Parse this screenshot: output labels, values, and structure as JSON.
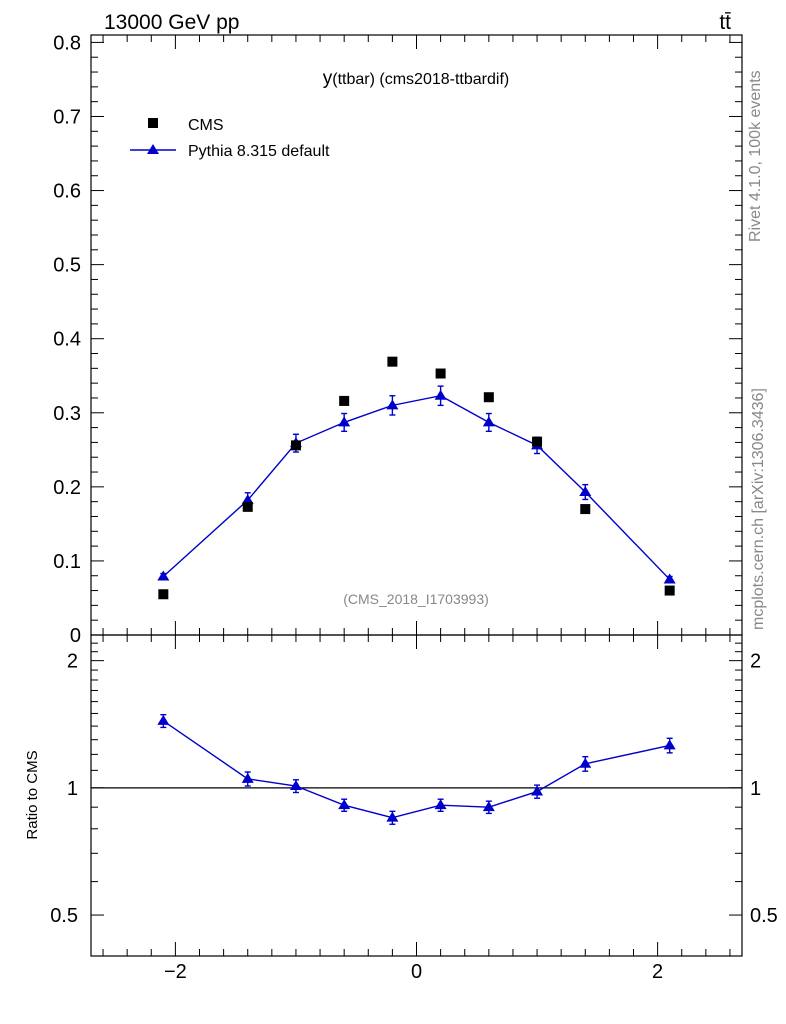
{
  "header": {
    "left": "13000 GeV pp",
    "right": "tt̄"
  },
  "side_labels": {
    "top": "Rivet 4.1.0,  100k events",
    "bottom": "mcplots.cern.ch [arXiv:1306.3436]"
  },
  "colors": {
    "data": "#000000",
    "mc": "#0000cc",
    "reference_line": "#000000",
    "watermark": "#888888"
  },
  "chart_data": [
    {
      "type": "scatter",
      "panel": "main",
      "title_prefix": "y",
      "title_rest": "(ttbar) (cms2018-ttbardif)",
      "watermark": "(CMS_2018_I1703993)",
      "xlabel": "",
      "ylabel": "",
      "xlim": [
        -2.7,
        2.7
      ],
      "ylim": [
        0,
        0.81
      ],
      "yticks": [
        0.1,
        0.2,
        0.3,
        0.4,
        0.5,
        0.6,
        0.7,
        0.8
      ],
      "ytick_labels": [
        "0.1",
        "0.2",
        "0.3",
        "0.4",
        "0.5",
        "0.6",
        "0.7",
        "0.8"
      ],
      "ytick_zero_label": "0",
      "legend_position": "top-left",
      "series": [
        {
          "name": "CMS",
          "marker": "square",
          "x": [
            -2.1,
            -1.4,
            -1.0,
            -0.6,
            -0.2,
            0.2,
            0.6,
            1.0,
            1.4,
            2.1
          ],
          "y": [
            0.055,
            0.173,
            0.256,
            0.316,
            0.369,
            0.353,
            0.321,
            0.261,
            0.17,
            0.06
          ]
        },
        {
          "name": "Pythia 8.315 default",
          "marker": "triangle",
          "line": true,
          "x": [
            -2.1,
            -1.4,
            -1.0,
            -0.6,
            -0.2,
            0.2,
            0.6,
            1.0,
            1.4,
            2.1
          ],
          "y": [
            0.079,
            0.182,
            0.259,
            0.287,
            0.31,
            0.323,
            0.287,
            0.256,
            0.193,
            0.075
          ],
          "yerr": [
            0.004,
            0.01,
            0.012,
            0.012,
            0.013,
            0.013,
            0.012,
            0.011,
            0.01,
            0.004
          ]
        }
      ]
    },
    {
      "type": "line",
      "panel": "ratio",
      "ylabel": "Ratio to CMS",
      "xlim": [
        -2.7,
        2.7
      ],
      "ylim": [
        0.4,
        2.3
      ],
      "ylog": true,
      "yticks": [
        0.5,
        1,
        2
      ],
      "ytick_labels": [
        "0.5",
        "1",
        "2"
      ],
      "xticks": [
        -2,
        0,
        2
      ],
      "xtick_labels": [
        "−2",
        "0",
        "2"
      ],
      "reference": 1,
      "series": [
        {
          "name": "Pythia 8.315 default",
          "x": [
            -2.1,
            -1.4,
            -1.0,
            -0.6,
            -0.2,
            0.2,
            0.6,
            1.0,
            1.4,
            2.1
          ],
          "y": [
            1.44,
            1.05,
            1.01,
            0.91,
            0.85,
            0.91,
            0.9,
            0.98,
            1.14,
            1.26
          ],
          "yerr": [
            0.05,
            0.04,
            0.035,
            0.03,
            0.03,
            0.03,
            0.03,
            0.035,
            0.045,
            0.05
          ]
        }
      ]
    }
  ]
}
